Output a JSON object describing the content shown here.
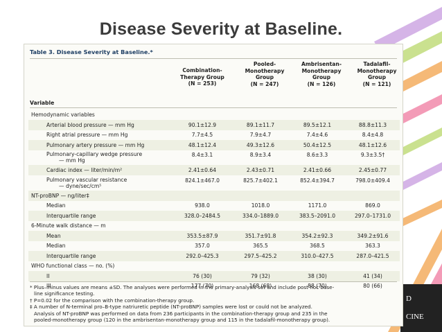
{
  "slide_title": "Disease Severity at Baseline.",
  "journal_mark": {
    "line1": "D",
    "line2": "CINE"
  },
  "table": {
    "caption": "Table 3. Disease Severity at Baseline.*",
    "variable_header": "Variable",
    "columns": [
      {
        "line1": "Combination-",
        "line2": "Therapy Group",
        "line3": "(N = 253)"
      },
      {
        "line1": "Pooled-",
        "line2": "Monotherapy",
        "line3": "Group",
        "line4": "(N = 247)"
      },
      {
        "line1": "Ambrisentan-",
        "line2": "Monotherapy",
        "line3": "Group",
        "line4": "(N = 126)"
      },
      {
        "line1": "Tadalafil-",
        "line2": "Monotherapy",
        "line3": "Group",
        "line4": "(N = 121)"
      }
    ],
    "rows": [
      {
        "label": "Hemodynamic variables",
        "indent": 0,
        "values": [
          "",
          "",
          "",
          ""
        ]
      },
      {
        "label": "Arterial blood pressure — mm Hg",
        "indent": 1,
        "values": [
          "90.1±12.9",
          "89.1±11.7",
          "89.5±12.1",
          "88.8±11.3"
        ]
      },
      {
        "label": "Right atrial pressure — mm Hg",
        "indent": 1,
        "values": [
          "7.7±4.5",
          "7.9±4.7",
          "7.4±4.6",
          "8.4±4.8"
        ]
      },
      {
        "label": "Pulmonary artery pressure — mm Hg",
        "indent": 1,
        "values": [
          "48.1±12.4",
          "49.3±12.6",
          "50.4±12.5",
          "48.1±12.6"
        ]
      },
      {
        "label": "Pulmonary-capillary wedge pressure",
        "label2": "— mm Hg",
        "indent": 1,
        "values": [
          "8.4±3.1",
          "8.9±3.4",
          "8.6±3.3",
          "9.3±3.5†"
        ]
      },
      {
        "label": "Cardiac index — liter/min/m²",
        "indent": 1,
        "values": [
          "2.41±0.64",
          "2.43±0.71",
          "2.41±0.66",
          "2.45±0.77"
        ]
      },
      {
        "label": "Pulmonary vascular resistance",
        "label2": "— dyne/sec/cm⁵",
        "indent": 1,
        "values": [
          "824.1±467.0",
          "825.7±402.1",
          "852.4±394.7",
          "798.0±409.4"
        ]
      },
      {
        "label": "NT-proBNP — ng/liter‡",
        "indent": 0,
        "values": [
          "",
          "",
          "",
          ""
        ]
      },
      {
        "label": "Median",
        "indent": 1,
        "values": [
          "938.0",
          "1018.0",
          "1171.0",
          "869.0"
        ]
      },
      {
        "label": "Interquartile range",
        "indent": 1,
        "values": [
          "328.0–2484.5",
          "334.0–1889.0",
          "383.5–2091.0",
          "297.0–1731.0"
        ]
      },
      {
        "label": "6-Minute walk distance — m",
        "indent": 0,
        "values": [
          "",
          "",
          "",
          ""
        ]
      },
      {
        "label": "Mean",
        "indent": 1,
        "values": [
          "353.5±87.9",
          "351.7±91.8",
          "354.2±92.3",
          "349.2±91.6"
        ]
      },
      {
        "label": "Median",
        "indent": 1,
        "values": [
          "357.0",
          "365.5",
          "368.5",
          "363.3"
        ]
      },
      {
        "label": "Interquartile range",
        "indent": 1,
        "values": [
          "292.0–425.3",
          "297.5–425.2",
          "310.0–427.5",
          "287.0–421.5"
        ]
      },
      {
        "label": "WHO functional class — no. (%)",
        "indent": 0,
        "values": [
          "",
          "",
          "",
          ""
        ]
      },
      {
        "label": "II",
        "indent": 1,
        "values": [
          "76 (30)",
          "79 (32)",
          "38 (30)",
          "41 (34)"
        ]
      },
      {
        "label": "III",
        "indent": 1,
        "values": [
          "177 (70)",
          "168 (68)",
          "88 (70)",
          "80 (66)"
        ]
      }
    ],
    "footnotes": [
      "* Plus–minus values are means ±SD. The analyses were performed in the primary-analysis set and include post hoc base-",
      "line significance testing.",
      "† P=0.02 for the comparison with the combination-therapy group.",
      "‡ A number of N-terminal pro–B-type natriuretic peptide (NT-proBNP) samples were lost or could not be analyzed.",
      "Analysis of NT-proBNP was performed on data from 236 participants in the combination-therapy group and 235 in the",
      "pooled-monotherapy group (120 in the ambrisentan-monotherapy group and 115 in the tadalafil-monotherapy group)."
    ]
  },
  "colors": {
    "title": "#3b3b3b",
    "caption": "#1f3f64",
    "row_shade": "#eef0e3",
    "stripe_orange": "#f2a24a",
    "stripe_pink": "#f07aa0",
    "stripe_green": "#b9d86a",
    "stripe_purple": "#c79be0"
  }
}
